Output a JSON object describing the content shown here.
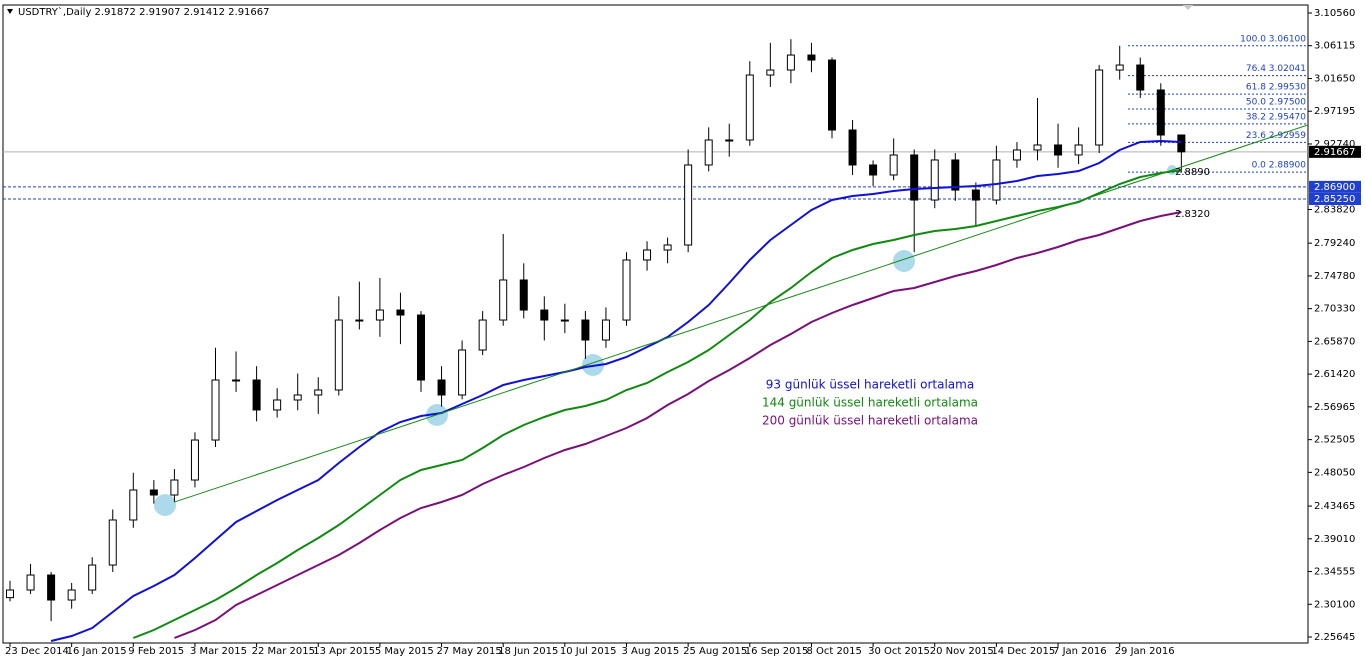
{
  "chart_data": {
    "type": "candlestick",
    "header": "USDTRY`,Daily  2.91872 2.91907 2.91412 2.91667",
    "categories": [
      "23 Dec 2014",
      null,
      null,
      "16 Jan 2015",
      null,
      null,
      "9 Feb 2015",
      null,
      null,
      "3 Mar 2015",
      null,
      null,
      "22 Mar 2015",
      null,
      null,
      "13 Apr 2015",
      null,
      null,
      "5 May 2015",
      null,
      null,
      "27 May 2015",
      null,
      null,
      "18 Jun 2015",
      null,
      null,
      "10 Jul 2015",
      null,
      null,
      "3 Aug 2015",
      null,
      null,
      "25 Aug 2015",
      null,
      null,
      "16 Sep 2015",
      null,
      null,
      "8 Oct 2015",
      null,
      null,
      "30 Oct 2015",
      null,
      null,
      "20 Nov 2015",
      null,
      null,
      "14 Dec 2015",
      null,
      null,
      "7 Jan 2016",
      null,
      null,
      "29 Jan 2016",
      null,
      null,
      null
    ],
    "ohlc": [
      [
        2.31,
        2.333,
        2.305,
        2.3204
      ],
      [
        2.3204,
        2.356,
        2.315,
        2.3408
      ],
      [
        2.3408,
        2.345,
        2.278,
        2.3068
      ],
      [
        2.3068,
        2.33,
        2.295,
        2.3204
      ],
      [
        2.3204,
        2.365,
        2.315,
        2.3544
      ],
      [
        2.3544,
        2.43,
        2.345,
        2.4157
      ],
      [
        2.4157,
        2.48,
        2.405,
        2.4565
      ],
      [
        2.4565,
        2.47,
        2.438,
        2.4497
      ],
      [
        2.4497,
        2.485,
        2.44,
        2.4701
      ],
      [
        2.4701,
        2.535,
        2.46,
        2.5245
      ],
      [
        2.5245,
        2.65,
        2.515,
        2.6062
      ],
      [
        2.6062,
        2.645,
        2.59,
        2.6062
      ],
      [
        2.6062,
        2.625,
        2.55,
        2.5654
      ],
      [
        2.5654,
        2.595,
        2.555,
        2.579
      ],
      [
        2.579,
        2.615,
        2.565,
        2.5858
      ],
      [
        2.5858,
        2.61,
        2.56,
        2.5926
      ],
      [
        2.5926,
        2.72,
        2.585,
        2.6878
      ],
      [
        2.6878,
        2.74,
        2.675,
        2.6878
      ],
      [
        2.6878,
        2.745,
        2.665,
        2.7014
      ],
      [
        2.7014,
        2.725,
        2.655,
        2.6946
      ],
      [
        2.6946,
        2.7,
        2.59,
        2.6062
      ],
      [
        2.6062,
        2.625,
        2.57,
        2.5858
      ],
      [
        2.5858,
        2.66,
        2.58,
        2.647
      ],
      [
        2.647,
        2.7,
        2.64,
        2.6878
      ],
      [
        2.6878,
        2.805,
        2.68,
        2.7423
      ],
      [
        2.7423,
        2.765,
        2.69,
        2.7014
      ],
      [
        2.7014,
        2.72,
        2.66,
        2.6878
      ],
      [
        2.6878,
        2.71,
        2.67,
        2.6878
      ],
      [
        2.6878,
        2.7,
        2.635,
        2.6606
      ],
      [
        2.6606,
        2.705,
        2.65,
        2.6878
      ],
      [
        2.6878,
        2.78,
        2.68,
        2.7695
      ],
      [
        2.7695,
        2.795,
        2.755,
        2.7831
      ],
      [
        2.7831,
        2.8,
        2.765,
        2.7899
      ],
      [
        2.7899,
        2.92,
        2.78,
        2.8988
      ],
      [
        2.8988,
        2.95,
        2.89,
        2.9328
      ],
      [
        2.9328,
        2.955,
        2.91,
        2.9328
      ],
      [
        2.9328,
        3.04,
        2.925,
        3.0212
      ],
      [
        3.0212,
        3.065,
        3.005,
        3.028
      ],
      [
        3.028,
        3.07,
        3.01,
        3.0484
      ],
      [
        3.0484,
        3.065,
        3.025,
        3.0416
      ],
      [
        3.0416,
        3.045,
        2.935,
        2.9464
      ],
      [
        2.9464,
        2.96,
        2.885,
        2.8988
      ],
      [
        2.8988,
        2.905,
        2.87,
        2.8852
      ],
      [
        2.8852,
        2.935,
        2.878,
        2.9124
      ],
      [
        2.9124,
        2.92,
        2.78,
        2.8511
      ],
      [
        2.8511,
        2.92,
        2.84,
        2.9056
      ],
      [
        2.9056,
        2.915,
        2.85,
        2.8647
      ],
      [
        2.8647,
        2.875,
        2.815,
        2.8511
      ],
      [
        2.8511,
        2.925,
        2.845,
        2.9056
      ],
      [
        2.9056,
        2.93,
        2.895,
        2.9192
      ],
      [
        2.9192,
        2.99,
        2.905,
        2.926
      ],
      [
        2.926,
        2.955,
        2.895,
        2.9124
      ],
      [
        2.9124,
        2.95,
        2.9,
        2.926
      ],
      [
        2.926,
        3.035,
        2.915,
        3.028
      ],
      [
        3.028,
        3.061,
        3.015,
        3.0348
      ],
      [
        3.0348,
        3.045,
        2.99,
        3.0008
      ],
      [
        3.0008,
        3.01,
        2.925,
        2.9396
      ],
      [
        2.9396,
        2.94,
        2.889,
        2.9167
      ]
    ],
    "series": [
      {
        "name": "93 günlük üssel hareketli ortalama",
        "color": "#1010d8",
        "values": [
          null,
          null,
          2.251,
          2.2578,
          2.2687,
          2.2905,
          2.3123,
          2.3259,
          2.3408,
          2.364,
          2.3885,
          2.413,
          2.4279,
          2.4429,
          2.4565,
          2.4701,
          2.4933,
          2.515,
          2.5354,
          2.549,
          2.5572,
          2.5613,
          2.5735,
          2.5858,
          2.5994,
          2.6062,
          2.6116,
          2.6171,
          2.6239,
          2.628,
          2.6375,
          2.6511,
          2.6647,
          2.6851,
          2.7083,
          2.7382,
          2.7695,
          2.7967,
          2.8171,
          2.8375,
          2.8511,
          2.8566,
          2.8593,
          2.8634,
          2.8661,
          2.8675,
          2.8688,
          2.8702,
          2.8729,
          2.877,
          2.8838,
          2.8865,
          2.8906,
          2.9015,
          2.9192,
          2.9301,
          2.9314,
          2.9301
        ]
      },
      {
        "name": "144 günlük üssel hareketli ortalama",
        "color": "#108a10",
        "values": [
          null,
          null,
          null,
          null,
          null,
          null,
          2.2551,
          2.266,
          2.2796,
          2.2932,
          2.3068,
          2.3232,
          2.3408,
          2.3572,
          2.3749,
          2.3912,
          2.4089,
          2.4293,
          2.4497,
          2.4701,
          2.4837,
          2.4905,
          2.4973,
          2.5137,
          2.5314,
          2.545,
          2.5558,
          2.5654,
          2.5708,
          2.579,
          2.5926,
          2.6021,
          2.6171,
          2.6307,
          2.647,
          2.6674,
          2.6878,
          2.7123,
          2.7314,
          2.7532,
          2.7722,
          2.7831,
          2.7913,
          2.7967,
          2.8035,
          2.809,
          2.8117,
          2.8158,
          2.8226,
          2.8294,
          2.8362,
          2.8416,
          2.8484,
          2.8607,
          2.8729,
          2.8824,
          2.8879,
          2.892
        ]
      },
      {
        "name": "200 günlük üssel hareketli ortalama",
        "color": "#7a107a",
        "values": [
          null,
          null,
          null,
          null,
          null,
          null,
          null,
          null,
          2.2551,
          2.266,
          2.2796,
          2.3,
          2.3136,
          2.3272,
          2.3408,
          2.3545,
          2.3681,
          2.3844,
          2.4021,
          2.4184,
          2.432,
          2.4402,
          2.4497,
          2.4647,
          2.4769,
          2.4878,
          2.5001,
          2.5109,
          2.5191,
          2.53,
          2.5409,
          2.5545,
          2.5722,
          2.5871,
          2.6048,
          2.6198,
          2.6361,
          2.6538,
          2.6688,
          2.6851,
          2.6974,
          2.7083,
          2.7178,
          2.7273,
          2.7314,
          2.7396,
          2.7477,
          2.7545,
          2.7627,
          2.7722,
          2.779,
          2.7872,
          2.7967,
          2.8035,
          2.813,
          2.8226,
          2.8294,
          2.8348
        ]
      }
    ],
    "trendline": {
      "x": [
        8,
        57
      ],
      "values": [
        2.4401,
        2.896
      ],
      "color": "#1a8a1a"
    },
    "fib_levels": [
      {
        "value": 3.061,
        "label": "100.0 3.06100"
      },
      {
        "value": 3.02041,
        "label": "76.4 3.02041"
      },
      {
        "value": 2.9953,
        "label": "61.8 2.99530"
      },
      {
        "value": 2.975,
        "label": "50.0 2.97500"
      },
      {
        "value": 2.9547,
        "label": "38.2 2.95470"
      },
      {
        "value": 2.92959,
        "label": "23.6 2.92959"
      },
      {
        "value": 2.889,
        "label": "0.0 2.88900"
      }
    ],
    "hlines": [
      {
        "value": 2.869,
        "label": "2.86900"
      },
      {
        "value": 2.8525,
        "label": "2.85250"
      }
    ],
    "last_price": {
      "value": 2.91667,
      "label": "2.91667"
    },
    "annotations": [
      {
        "value": 2.889,
        "label": "2.8890"
      },
      {
        "value": 2.832,
        "label": "2.8320"
      }
    ],
    "ylim": [
      2.2483,
      3.1165
    ],
    "yticks": [
      {
        "value": 3.1056,
        "label": "3.10560"
      },
      {
        "value": 3.06115,
        "label": "3.06115"
      },
      {
        "value": 3.0165,
        "label": "3.01650"
      },
      {
        "value": 2.97195,
        "label": "2.97195"
      },
      {
        "value": 2.9274,
        "label": "2.92740"
      },
      {
        "value": 2.8382,
        "label": "2.83820"
      },
      {
        "value": 2.7924,
        "label": "2.79240"
      },
      {
        "value": 2.7478,
        "label": "2.74780"
      },
      {
        "value": 2.7033,
        "label": "2.70330"
      },
      {
        "value": 2.6587,
        "label": "2.65870"
      },
      {
        "value": 2.6142,
        "label": "2.61420"
      },
      {
        "value": 2.56965,
        "label": "2.56965"
      },
      {
        "value": 2.52505,
        "label": "2.52505"
      },
      {
        "value": 2.4805,
        "label": "2.48050"
      },
      {
        "value": 2.43465,
        "label": "2.43465"
      },
      {
        "value": 2.3901,
        "label": "2.39010"
      },
      {
        "value": 2.34555,
        "label": "2.34555"
      },
      {
        "value": 2.301,
        "label": "2.30100"
      },
      {
        "value": 2.25645,
        "label": "2.25645"
      }
    ],
    "grid": false
  }
}
